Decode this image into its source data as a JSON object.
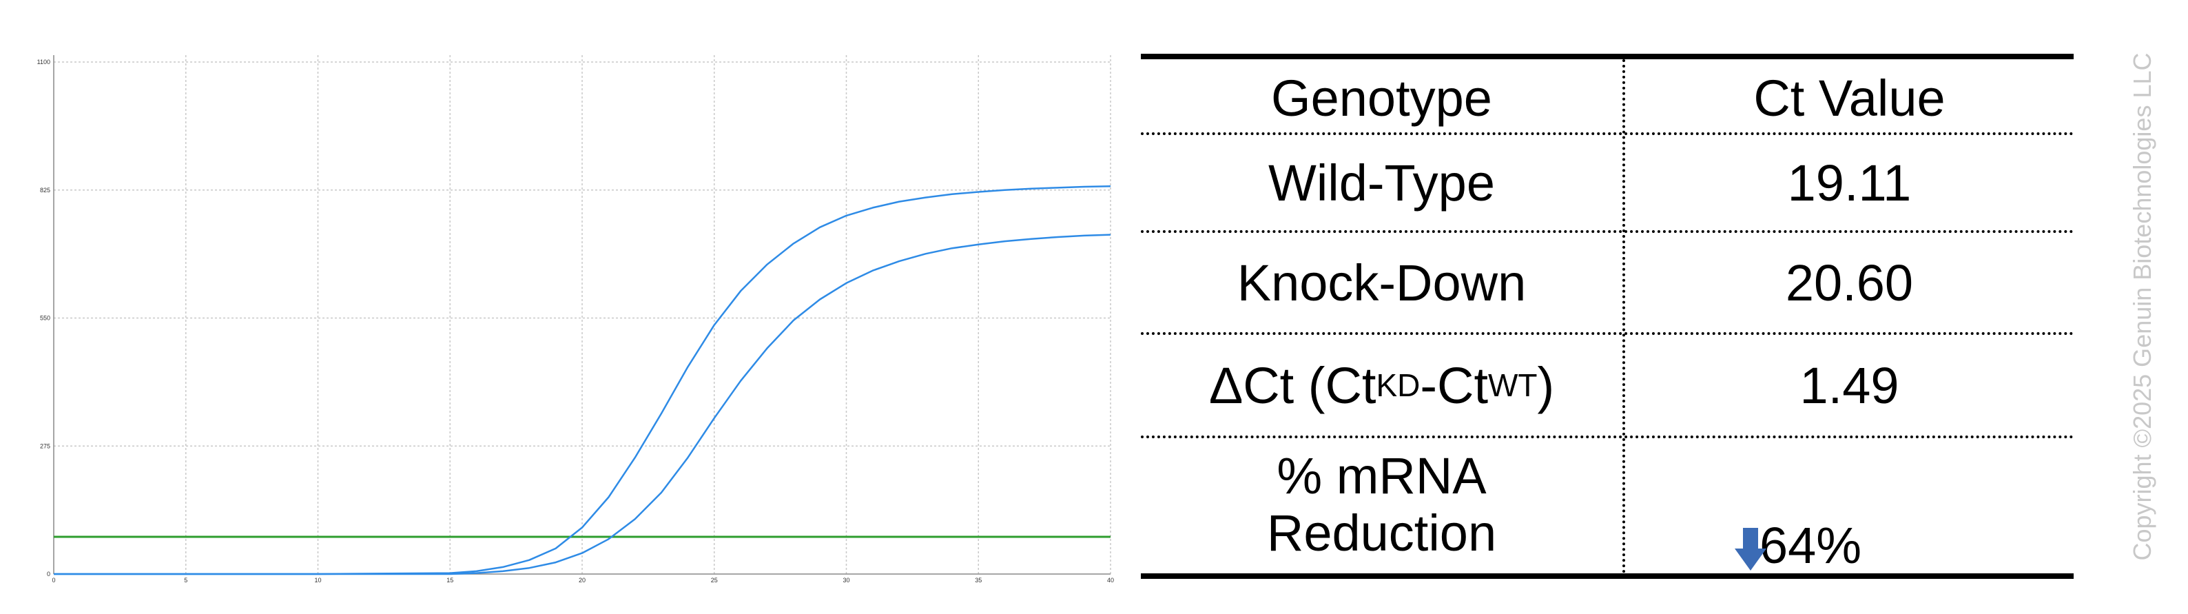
{
  "chart_data": {
    "type": "line",
    "xlim": [
      0,
      40
    ],
    "ylim": [
      0,
      1100
    ],
    "xticks": [
      "0",
      "5",
      "10",
      "15",
      "20",
      "25",
      "30",
      "35",
      "40"
    ],
    "yticks": [
      "0",
      "275",
      "550",
      "825",
      "1100"
    ],
    "grid": true,
    "threshold": 80,
    "series": [
      {
        "color": "#2e8be6",
        "x": [
          0,
          5,
          10,
          15,
          16,
          17,
          18,
          19,
          20,
          21,
          22,
          23,
          24,
          25,
          26,
          27,
          28,
          29,
          30,
          31,
          32,
          33,
          34,
          35,
          36,
          37,
          38,
          39,
          40
        ],
        "y": [
          0,
          0,
          0,
          2,
          6,
          15,
          30,
          55,
          100,
          165,
          250,
          345,
          445,
          535,
          608,
          665,
          710,
          745,
          770,
          787,
          800,
          809,
          816,
          821,
          825,
          828,
          830,
          832,
          833
        ]
      },
      {
        "color": "#2e8be6",
        "x": [
          0,
          5,
          10,
          15,
          16,
          17,
          18,
          19,
          20,
          21,
          22,
          23,
          24,
          25,
          26,
          27,
          28,
          29,
          30,
          31,
          32,
          33,
          34,
          35,
          36,
          37,
          38,
          39,
          40
        ],
        "y": [
          0,
          0,
          0,
          0,
          2,
          6,
          13,
          25,
          45,
          75,
          118,
          175,
          250,
          335,
          415,
          485,
          545,
          590,
          625,
          652,
          672,
          688,
          700,
          708,
          715,
          720,
          724,
          727,
          729
        ]
      }
    ],
    "threshold_color": "#2e9d2e"
  },
  "table": {
    "header": {
      "genotype": "Genotype",
      "ct_value": "Ct Value"
    },
    "rows": [
      {
        "label": "Wild-Type",
        "value": "19.11"
      },
      {
        "label": "Knock-Down",
        "value": "20.60"
      }
    ],
    "delta_row": {
      "label_main": "ΔCt (Ct",
      "sub1": "KD",
      "dash": "-Ct",
      "sub2": "WT",
      "close": ")",
      "value": "1.49"
    },
    "reduction_row": {
      "label_line1": "% mRNA",
      "label_line2": "Reduction",
      "value": "64%",
      "arrow_icon": "down-arrow-icon",
      "arrow_color": "#3b6bb5"
    }
  },
  "copyright": "Copyright ©2025 Genuin Biotechnologies LLC"
}
